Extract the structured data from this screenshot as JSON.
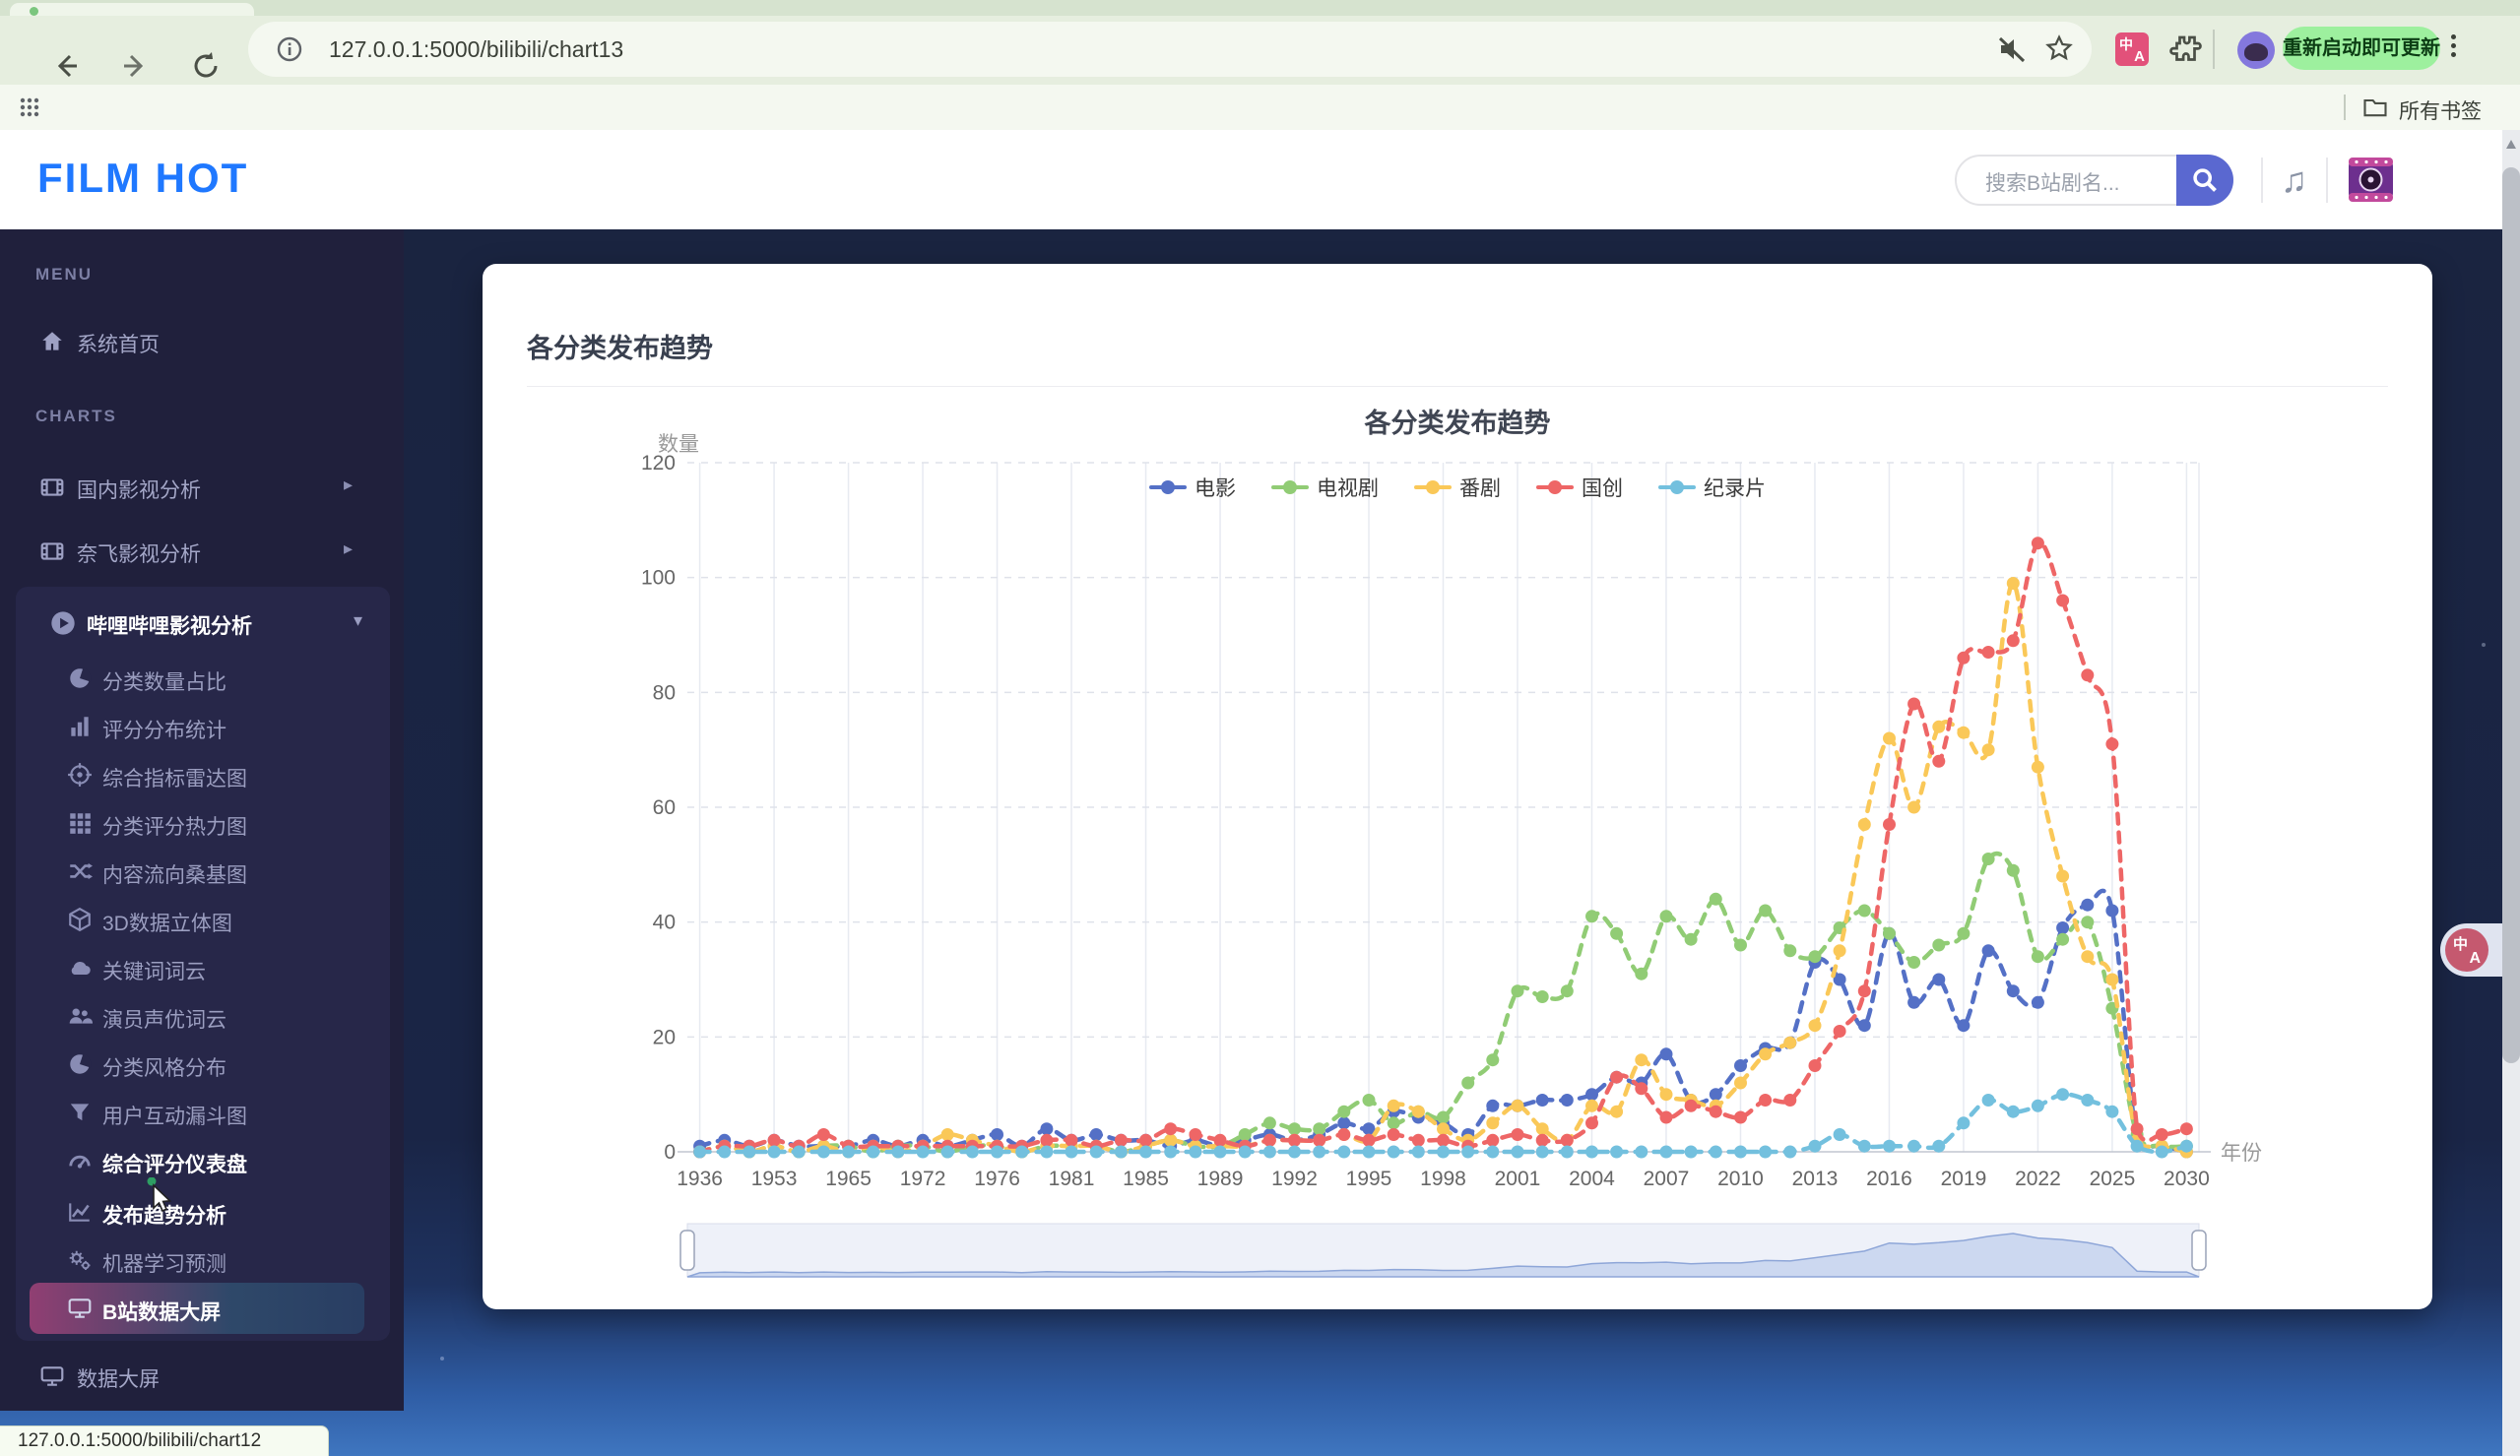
{
  "browser": {
    "url": "127.0.0.1:5000/bilibili/chart13",
    "update_button": "重新启动即可更新",
    "all_bookmarks": "所有书签",
    "status_link": "127.0.0.1:5000/bilibili/chart12"
  },
  "header": {
    "logo": "FILM HOT",
    "search_placeholder": "搜索B站剧名..."
  },
  "sidebar": {
    "menu_header": "MENU",
    "charts_header": "CHARTS",
    "home_label": "系统首页",
    "group1_label": "国内影视分析",
    "group2_label": "奈飞影视分析",
    "group3_label": "哔哩哔哩影视分析",
    "items": [
      {
        "label": "分类数量占比",
        "icon": "pie"
      },
      {
        "label": "评分分布统计",
        "icon": "bars"
      },
      {
        "label": "综合指标雷达图",
        "icon": "target"
      },
      {
        "label": "分类评分热力图",
        "icon": "grid"
      },
      {
        "label": "内容流向桑基图",
        "icon": "shuffle"
      },
      {
        "label": "3D数据立体图",
        "icon": "cube"
      },
      {
        "label": "关键词词云",
        "icon": "cloud"
      },
      {
        "label": "演员声优词云",
        "icon": "users"
      },
      {
        "label": "分类风格分布",
        "icon": "pie"
      },
      {
        "label": "用户互动漏斗图",
        "icon": "funnel"
      },
      {
        "label": "综合评分仪表盘",
        "icon": "gauge",
        "hover": true
      },
      {
        "label": "发布趋势分析",
        "icon": "trend",
        "active": true
      },
      {
        "label": "机器学习预测",
        "icon": "gears"
      },
      {
        "label": "B站数据大屏",
        "icon": "monitor",
        "highlight": true
      }
    ],
    "data_screen_label": "数据大屏"
  },
  "card": {
    "title": "各分类发布趋势"
  },
  "chart_data": {
    "type": "line",
    "title": "各分类发布趋势",
    "x_axis_name": "年份",
    "y_axis_name": "数量",
    "ylim": [
      0,
      120
    ],
    "yticks": [
      0,
      20,
      40,
      60,
      80,
      100,
      120
    ],
    "x_label_every": 3,
    "legend_position": "top",
    "grid": true,
    "line_style": "dashed, smooth, circle markers",
    "datazoom_slider": true,
    "categories": [
      "1936",
      "1944",
      "1948",
      "1953",
      "1957",
      "1961",
      "1965",
      "1968",
      "1970",
      "1972",
      "1974",
      "1975",
      "1976",
      "1978",
      "1980",
      "1981",
      "1983",
      "1984",
      "1985",
      "1987",
      "1988",
      "1989",
      "1990",
      "1991",
      "1992",
      "1993",
      "1994",
      "1995",
      "1996",
      "1997",
      "1998",
      "1999",
      "2000",
      "2001",
      "2002",
      "2003",
      "2004",
      "2005",
      "2006",
      "2007",
      "2008",
      "2009",
      "2010",
      "2011",
      "2012",
      "2013",
      "2014",
      "2015",
      "2016",
      "2017",
      "2018",
      "2019",
      "2020",
      "2021",
      "2022",
      "2023",
      "2024",
      "2025",
      "2026",
      "2027",
      "2030"
    ],
    "series": [
      {
        "name": "电影",
        "color": "#5470c6",
        "values": [
          1,
          2,
          1,
          2,
          1,
          1,
          1,
          2,
          1,
          2,
          1,
          2,
          3,
          1,
          4,
          2,
          3,
          2,
          2,
          1,
          2,
          1,
          2,
          3,
          2,
          3,
          5,
          4,
          7,
          6,
          5,
          3,
          8,
          8,
          9,
          9,
          10,
          13,
          12,
          17,
          9,
          10,
          15,
          18,
          19,
          33,
          30,
          22,
          38,
          26,
          30,
          22,
          35,
          28,
          26,
          39,
          43,
          42,
          2,
          1,
          0
        ]
      },
      {
        "name": "电视剧",
        "color": "#91cc75",
        "values": [
          0,
          1,
          0,
          1,
          0,
          1,
          1,
          0,
          1,
          1,
          0,
          1,
          1,
          0,
          1,
          1,
          1,
          0,
          1,
          2,
          1,
          1,
          3,
          5,
          4,
          4,
          7,
          9,
          5,
          7,
          6,
          12,
          16,
          28,
          27,
          28,
          41,
          38,
          31,
          41,
          37,
          44,
          36,
          42,
          35,
          34,
          39,
          42,
          38,
          33,
          36,
          38,
          51,
          49,
          34,
          37,
          40,
          25,
          3,
          1,
          1
        ]
      },
      {
        "name": "番剧",
        "color": "#fac858",
        "values": [
          0,
          1,
          0,
          1,
          0,
          1,
          0,
          1,
          0,
          1,
          3,
          2,
          1,
          0,
          1,
          1,
          1,
          0,
          1,
          2,
          1,
          1,
          1,
          2,
          2,
          2,
          3,
          2,
          8,
          7,
          4,
          2,
          5,
          8,
          4,
          2,
          8,
          7,
          16,
          10,
          9,
          8,
          12,
          17,
          19,
          22,
          35,
          57,
          72,
          60,
          74,
          73,
          70,
          99,
          67,
          48,
          34,
          30,
          2,
          1,
          0
        ]
      },
      {
        "name": "国创",
        "color": "#ee6666",
        "values": [
          0,
          1,
          1,
          2,
          1,
          3,
          1,
          1,
          1,
          1,
          1,
          1,
          1,
          1,
          2,
          2,
          1,
          2,
          2,
          4,
          3,
          2,
          1,
          2,
          2,
          2,
          3,
          2,
          3,
          2,
          2,
          1,
          2,
          3,
          2,
          2,
          5,
          13,
          11,
          6,
          8,
          7,
          6,
          9,
          9,
          15,
          21,
          28,
          57,
          78,
          68,
          86,
          87,
          89,
          106,
          96,
          83,
          71,
          4,
          3,
          4
        ]
      },
      {
        "name": "纪录片",
        "color": "#73c0de",
        "values": [
          0,
          0,
          0,
          0,
          0,
          0,
          0,
          0,
          0,
          0,
          0,
          0,
          0,
          0,
          0,
          0,
          0,
          0,
          0,
          0,
          0,
          0,
          0,
          0,
          0,
          0,
          0,
          0,
          0,
          0,
          0,
          0,
          0,
          0,
          0,
          0,
          0,
          0,
          0,
          0,
          0,
          0,
          0,
          0,
          0,
          1,
          3,
          1,
          1,
          1,
          1,
          5,
          9,
          7,
          8,
          10,
          9,
          7,
          1,
          0,
          1
        ]
      }
    ]
  }
}
